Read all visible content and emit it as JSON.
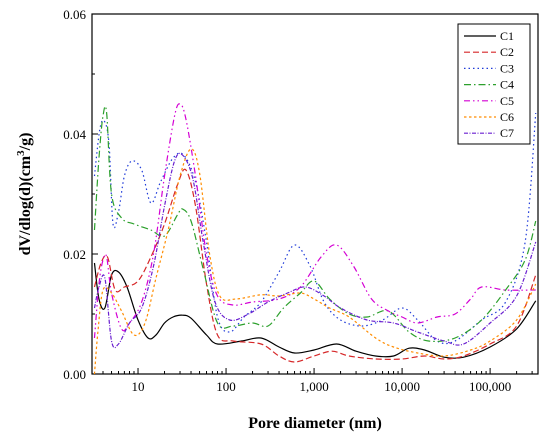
{
  "chart_data": {
    "type": "line",
    "title": "",
    "xlabel": "Pore diameter (nm)",
    "ylabel_parts": [
      "dV/dlog(d)(cm",
      "3",
      "/g)"
    ],
    "xscale": "log",
    "xlim": [
      3,
      350000
    ],
    "ylim": [
      0,
      0.06
    ],
    "xticks": [
      {
        "value": 10,
        "label": "10"
      },
      {
        "value": 100,
        "label": "100"
      },
      {
        "value": 1000,
        "label": "1,000"
      },
      {
        "value": 10000,
        "label": "10,000"
      },
      {
        "value": 100000,
        "label": "100,000"
      }
    ],
    "yticks": [
      {
        "value": 0,
        "label": "0.00"
      },
      {
        "value": 0.02,
        "label": "0.02"
      },
      {
        "value": 0.04,
        "label": "0.04"
      },
      {
        "value": 0.06,
        "label": "0.06"
      }
    ],
    "grid": false,
    "legend_position": "top-right",
    "series": [
      {
        "name": "C1",
        "color": "#000000",
        "dash": "",
        "points": [
          [
            3.2,
            0.0185
          ],
          [
            3.6,
            0.0125
          ],
          [
            4.2,
            0.011
          ],
          [
            5,
            0.0165
          ],
          [
            6,
            0.017
          ],
          [
            7.5,
            0.0145
          ],
          [
            10,
            0.009
          ],
          [
            13,
            0.006
          ],
          [
            16,
            0.0065
          ],
          [
            20,
            0.0085
          ],
          [
            25,
            0.0095
          ],
          [
            32,
            0.0098
          ],
          [
            40,
            0.0093
          ],
          [
            60,
            0.0065
          ],
          [
            80,
            0.005
          ],
          [
            150,
            0.0055
          ],
          [
            250,
            0.006
          ],
          [
            400,
            0.0045
          ],
          [
            600,
            0.0035
          ],
          [
            1000,
            0.004
          ],
          [
            1800,
            0.005
          ],
          [
            3000,
            0.0038
          ],
          [
            5000,
            0.003
          ],
          [
            8000,
            0.003
          ],
          [
            12000,
            0.0043
          ],
          [
            18000,
            0.004
          ],
          [
            30000,
            0.0028
          ],
          [
            50000,
            0.0028
          ],
          [
            100000,
            0.0045
          ],
          [
            200000,
            0.0075
          ],
          [
            330000,
            0.0122
          ]
        ]
      },
      {
        "name": "C2",
        "color": "#d62728",
        "dash": "6,3",
        "points": [
          [
            3.2,
            0.0145
          ],
          [
            3.8,
            0.0185
          ],
          [
            4.5,
            0.0195
          ],
          [
            5.5,
            0.014
          ],
          [
            7,
            0.0145
          ],
          [
            10,
            0.0155
          ],
          [
            14,
            0.0195
          ],
          [
            20,
            0.025
          ],
          [
            28,
            0.0315
          ],
          [
            35,
            0.034
          ],
          [
            45,
            0.028
          ],
          [
            60,
            0.015
          ],
          [
            80,
            0.0065
          ],
          [
            120,
            0.0055
          ],
          [
            250,
            0.005
          ],
          [
            400,
            0.003
          ],
          [
            600,
            0.002
          ],
          [
            1000,
            0.003
          ],
          [
            1600,
            0.0038
          ],
          [
            2500,
            0.003
          ],
          [
            5000,
            0.0025
          ],
          [
            10000,
            0.0025
          ],
          [
            18000,
            0.003
          ],
          [
            30000,
            0.0025
          ],
          [
            50000,
            0.003
          ],
          [
            100000,
            0.005
          ],
          [
            200000,
            0.008
          ],
          [
            330000,
            0.0165
          ]
        ]
      },
      {
        "name": "C3",
        "color": "#1f3bd9",
        "dash": "1.5,3",
        "points": [
          [
            3.2,
            0.033
          ],
          [
            3.7,
            0.041
          ],
          [
            4.2,
            0.042
          ],
          [
            4.7,
            0.038
          ],
          [
            5.2,
            0.025
          ],
          [
            6,
            0.027
          ],
          [
            7,
            0.033
          ],
          [
            8.5,
            0.0355
          ],
          [
            11,
            0.034
          ],
          [
            14,
            0.0285
          ],
          [
            18,
            0.032
          ],
          [
            25,
            0.036
          ],
          [
            33,
            0.0365
          ],
          [
            45,
            0.032
          ],
          [
            60,
            0.022
          ],
          [
            80,
            0.0095
          ],
          [
            110,
            0.007
          ],
          [
            160,
            0.0095
          ],
          [
            250,
            0.012
          ],
          [
            400,
            0.017
          ],
          [
            600,
            0.0215
          ],
          [
            900,
            0.018
          ],
          [
            1300,
            0.012
          ],
          [
            2000,
            0.009
          ],
          [
            3500,
            0.008
          ],
          [
            6000,
            0.009
          ],
          [
            10000,
            0.011
          ],
          [
            15000,
            0.009
          ],
          [
            25000,
            0.0055
          ],
          [
            40000,
            0.0055
          ],
          [
            80000,
            0.009
          ],
          [
            150000,
            0.012
          ],
          [
            250000,
            0.022
          ],
          [
            330000,
            0.0435
          ]
        ]
      },
      {
        "name": "C4",
        "color": "#2ca02c",
        "dash": "7,3,1.5,3",
        "points": [
          [
            3.2,
            0.024
          ],
          [
            3.6,
            0.036
          ],
          [
            4,
            0.043
          ],
          [
            4.4,
            0.0435
          ],
          [
            5,
            0.03
          ],
          [
            6.5,
            0.026
          ],
          [
            9,
            0.025
          ],
          [
            14,
            0.024
          ],
          [
            20,
            0.023
          ],
          [
            28,
            0.0265
          ],
          [
            32,
            0.0275
          ],
          [
            40,
            0.0255
          ],
          [
            55,
            0.0175
          ],
          [
            80,
            0.0085
          ],
          [
            120,
            0.008
          ],
          [
            200,
            0.0085
          ],
          [
            300,
            0.008
          ],
          [
            450,
            0.011
          ],
          [
            700,
            0.0135
          ],
          [
            1000,
            0.0155
          ],
          [
            1500,
            0.0125
          ],
          [
            2500,
            0.01
          ],
          [
            4000,
            0.0095
          ],
          [
            7000,
            0.0105
          ],
          [
            12000,
            0.007
          ],
          [
            20000,
            0.0055
          ],
          [
            40000,
            0.006
          ],
          [
            80000,
            0.009
          ],
          [
            150000,
            0.014
          ],
          [
            250000,
            0.019
          ],
          [
            330000,
            0.0255
          ]
        ]
      },
      {
        "name": "C5",
        "color": "#d400d4",
        "dash": "6,3,1.5,3,1.5,3",
        "points": [
          [
            3.2,
            0.006
          ],
          [
            3.6,
            0.015
          ],
          [
            4,
            0.019
          ],
          [
            4.4,
            0.0195
          ],
          [
            5,
            0.0135
          ],
          [
            6.5,
            0.0075
          ],
          [
            8,
            0.0085
          ],
          [
            11,
            0.012
          ],
          [
            15,
            0.02
          ],
          [
            20,
            0.033
          ],
          [
            26,
            0.043
          ],
          [
            30,
            0.045
          ],
          [
            35,
            0.0425
          ],
          [
            45,
            0.033
          ],
          [
            60,
            0.02
          ],
          [
            80,
            0.013
          ],
          [
            120,
            0.0115
          ],
          [
            200,
            0.012
          ],
          [
            400,
            0.0125
          ],
          [
            700,
            0.0145
          ],
          [
            1200,
            0.0195
          ],
          [
            1800,
            0.0215
          ],
          [
            2800,
            0.018
          ],
          [
            4500,
            0.0125
          ],
          [
            7000,
            0.0105
          ],
          [
            10000,
            0.0095
          ],
          [
            15000,
            0.0085
          ],
          [
            25000,
            0.0095
          ],
          [
            40000,
            0.01
          ],
          [
            60000,
            0.0125
          ],
          [
            80000,
            0.0145
          ],
          [
            150000,
            0.014
          ],
          [
            330000,
            0.014
          ]
        ]
      },
      {
        "name": "C6",
        "color": "#ff8c00",
        "dash": "2.5,2.5",
        "points": [
          [
            3.2,
            0.0
          ],
          [
            3.5,
            0.007
          ],
          [
            4,
            0.014
          ],
          [
            5,
            0.0135
          ],
          [
            6.5,
            0.0105
          ],
          [
            9,
            0.0065
          ],
          [
            12,
            0.0085
          ],
          [
            16,
            0.016
          ],
          [
            22,
            0.024
          ],
          [
            30,
            0.033
          ],
          [
            40,
            0.0375
          ],
          [
            50,
            0.0335
          ],
          [
            65,
            0.02
          ],
          [
            85,
            0.013
          ],
          [
            130,
            0.0125
          ],
          [
            250,
            0.0132
          ],
          [
            400,
            0.013
          ],
          [
            700,
            0.0135
          ],
          [
            1000,
            0.0125
          ],
          [
            1500,
            0.011
          ],
          [
            2500,
            0.0095
          ],
          [
            5000,
            0.006
          ],
          [
            8000,
            0.0045
          ],
          [
            15000,
            0.0035
          ],
          [
            30000,
            0.003
          ],
          [
            60000,
            0.004
          ],
          [
            100000,
            0.0055
          ],
          [
            200000,
            0.009
          ],
          [
            330000,
            0.015
          ]
        ]
      },
      {
        "name": "C7",
        "color": "#6a1fd0",
        "dash": "4,1.5,1,1.5",
        "points": [
          [
            3.2,
            0.011
          ],
          [
            3.6,
            0.0145
          ],
          [
            4.2,
            0.016
          ],
          [
            5,
            0.0055
          ],
          [
            6,
            0.005
          ],
          [
            8,
            0.0085
          ],
          [
            11,
            0.011
          ],
          [
            15,
            0.018
          ],
          [
            20,
            0.028
          ],
          [
            26,
            0.0355
          ],
          [
            32,
            0.0365
          ],
          [
            42,
            0.0325
          ],
          [
            55,
            0.022
          ],
          [
            75,
            0.012
          ],
          [
            110,
            0.009
          ],
          [
            180,
            0.01
          ],
          [
            300,
            0.012
          ],
          [
            500,
            0.0135
          ],
          [
            800,
            0.0145
          ],
          [
            1300,
            0.013
          ],
          [
            2000,
            0.011
          ],
          [
            4000,
            0.009
          ],
          [
            8000,
            0.0085
          ],
          [
            15000,
            0.007
          ],
          [
            30000,
            0.0055
          ],
          [
            50000,
            0.005
          ],
          [
            100000,
            0.0085
          ],
          [
            200000,
            0.013
          ],
          [
            330000,
            0.022
          ]
        ]
      }
    ]
  }
}
